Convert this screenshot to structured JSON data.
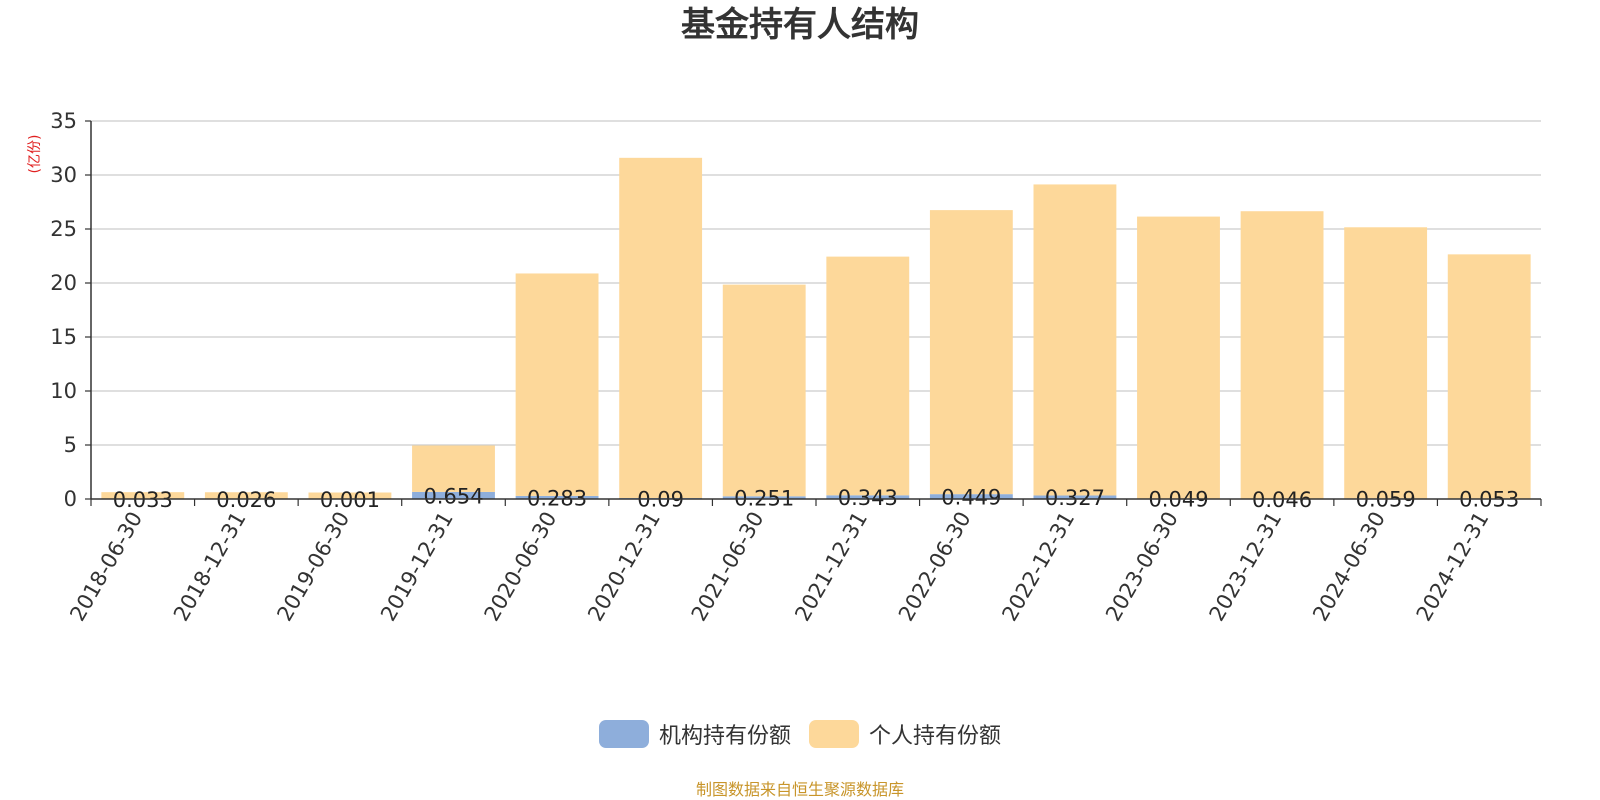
{
  "page": {
    "title": "基金持有人结构",
    "unit_label": "(亿份)",
    "source_note": "制图数据来自恒生聚源数据库"
  },
  "colors": {
    "institution": "#8eaedb",
    "individual": "#fdd89a",
    "grid": "#cccccc",
    "axis": "#333333",
    "title": "#333333",
    "unit_label": "#e02020",
    "source_note": "#c8952a"
  },
  "chart_data": {
    "type": "bar",
    "stacked": true,
    "title": "基金持有人结构",
    "ylabel": "(亿份)",
    "ylim": [
      0,
      35
    ],
    "yticks": [
      0,
      5,
      10,
      15,
      20,
      25,
      30,
      35
    ],
    "grid": true,
    "legend_position": "bottom-center",
    "categories": [
      "2018-06-30",
      "2018-12-31",
      "2019-06-30",
      "2019-12-31",
      "2020-06-30",
      "2020-12-31",
      "2021-06-30",
      "2021-12-31",
      "2022-06-30",
      "2022-12-31",
      "2023-06-30",
      "2023-12-31",
      "2024-06-30",
      "2024-12-31"
    ],
    "series": [
      {
        "name": "机构持有份额",
        "values": [
          0.033,
          0.026,
          0.001,
          0.654,
          0.283,
          0.09,
          0.251,
          0.343,
          0.449,
          0.327,
          0.049,
          0.046,
          0.059,
          0.053
        ],
        "labels": [
          "0.033",
          "0.026",
          "0.001",
          "0.654",
          "0.283",
          "0.09",
          "0.251",
          "0.343",
          "0.449",
          "0.327",
          "0.049",
          "0.046",
          "0.059",
          "0.053"
        ]
      },
      {
        "name": "个人持有份额",
        "values": [
          0.6,
          0.6,
          0.6,
          4.3,
          20.6,
          31.5,
          19.6,
          22.1,
          26.3,
          28.8,
          26.1,
          26.6,
          25.1,
          22.6
        ]
      }
    ]
  }
}
